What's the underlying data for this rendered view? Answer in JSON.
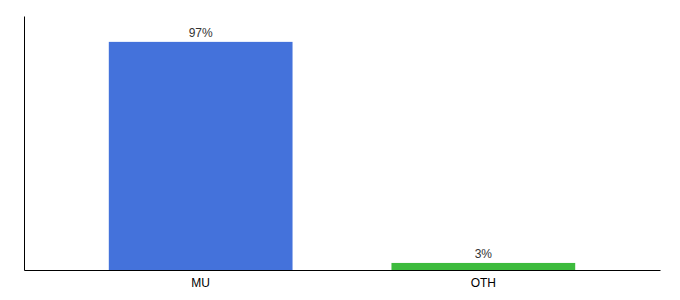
{
  "chart_data": {
    "type": "bar",
    "categories": [
      "MU",
      "OTH"
    ],
    "values": [
      97,
      3
    ],
    "value_labels": [
      "97%",
      "3%"
    ],
    "colors": [
      "#4472db",
      "#3dbb3d"
    ],
    "ylim": [
      0,
      108
    ],
    "data_labels": true,
    "tick_labels": "x",
    "grid": false
  }
}
